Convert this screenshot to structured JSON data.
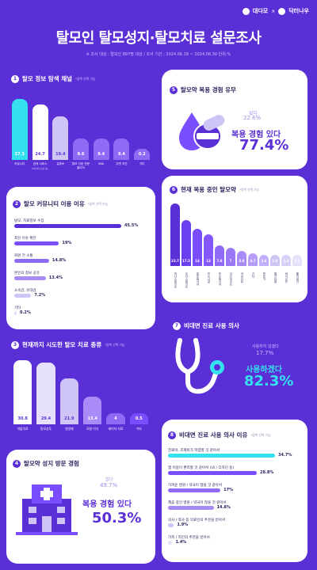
{
  "header": {
    "brand_left": "대다모",
    "brand_x": "×",
    "brand_right": "닥터나우",
    "title": "탈모인 탈모성지·탈모치료 설문조사",
    "subinfo": "※ 조사 대상 : 탈모인 897명 대상   /   조사 기간 : 2024.06.18 ~ 2024.06.30 단위:%"
  },
  "s1": {
    "num": "1",
    "title": "탈모 정보 탐색 채널",
    "note": "*중복 선택 가능",
    "categories": [
      "커뮤니티",
      "검색 서비스",
      "유튜브",
      "탈모 관련 전문 클리닉",
      "SNS",
      "주변 지인",
      "기타"
    ],
    "sublabel": "(네이버,구글 등)",
    "values": [
      27.3,
      24.7,
      19.4,
      9.6,
      9.4,
      9.4,
      0.2
    ]
  },
  "s2": {
    "num": "2",
    "title": "탈모 커뮤니티 이용 이유",
    "note": "*중복 선택 가능",
    "labels": [
      "탈모, 치료정보 수집",
      "최신 이슈 확인",
      "회원 간 소통",
      "본인의 정보 공유",
      "소속감, 유대감",
      "기타"
    ],
    "values": [
      45.5,
      19,
      14.8,
      13.4,
      7.2,
      0.2
    ],
    "value_labels": [
      "45.5%",
      "19%",
      "14.8%",
      "13.4%",
      "7.2%",
      "0.2%"
    ]
  },
  "s3": {
    "num": "3",
    "title": "현재까지 시도한 탈모 치료 종류",
    "note": "*중복 선택 가능",
    "categories": [
      "약물치료",
      "탈모샴푸",
      "영양제",
      "모발 이식",
      "레이저 치료",
      "기타"
    ],
    "values": [
      30.8,
      29.4,
      21.9,
      13.4,
      4,
      0.5
    ]
  },
  "s4": {
    "num": "4",
    "title": "탈모약 성지 방문 경험",
    "no_label": "없다",
    "no_value": "49.7%",
    "yes_label": "복용 경험 있다",
    "yes_value": "50.3%"
  },
  "s5": {
    "num": "5",
    "title": "탈모약 복용 경험 유무",
    "no_label": "없다",
    "no_value": "22.6%",
    "yes_label": "복용 경험 있다",
    "yes_value": "77.4%"
  },
  "s6": {
    "num": "6",
    "title": "현재 복용 중인 탈모약",
    "note": "*중복 선택 가능",
    "categories": [
      "피나스테리드",
      "두타스테리드",
      "알로페시아",
      "미녹시딜",
      "프로페시아",
      "다트리스트",
      "아보다트",
      "기타",
      "판토가",
      "엘크라넬",
      "바이오틴",
      "폴리테인"
    ],
    "values": [
      23.7,
      17.5,
      14,
      12,
      7.8,
      7,
      5.8,
      4.7,
      3.6,
      2.8,
      2.3,
      2.2
    ]
  },
  "s7": {
    "num": "7",
    "title": "비대면 진료 사용 의사",
    "no_label": "사용하지 않겠다",
    "no_value": "17.7%",
    "yes_label": "사용하겠다",
    "yes_value": "82.3%"
  },
  "s8": {
    "num": "8",
    "title": "비대면 진료 사용 의사 이유",
    "note": "*중복 선택 가능",
    "labels": [
      "진료비, 조제비가 저렴할 것 같아서",
      "앱 이용이 편리할 것 같아서 (UI / 디자인 등)",
      "가까운 병원 / 약국이 많을 것 같아서",
      "제휴 중인 병원 / 약국이 많을 것 같아서",
      "의사 / 약사 등 의료인의 추천을 받아서",
      "가족 / 지인의 추천을 받아서"
    ],
    "values": [
      34.7,
      28.8,
      17,
      14.8,
      1.9,
      1.4
    ],
    "value_labels": [
      "34.7%",
      "28.8%",
      "17%",
      "14.8%",
      "1.9%",
      "1.4%"
    ]
  },
  "colors": {
    "bg": "#5b2fd6",
    "accent": "#6a3ff0",
    "cyan": "#35e0ef",
    "light": "#cfc4f6",
    "pale": "#e6e0fa"
  }
}
